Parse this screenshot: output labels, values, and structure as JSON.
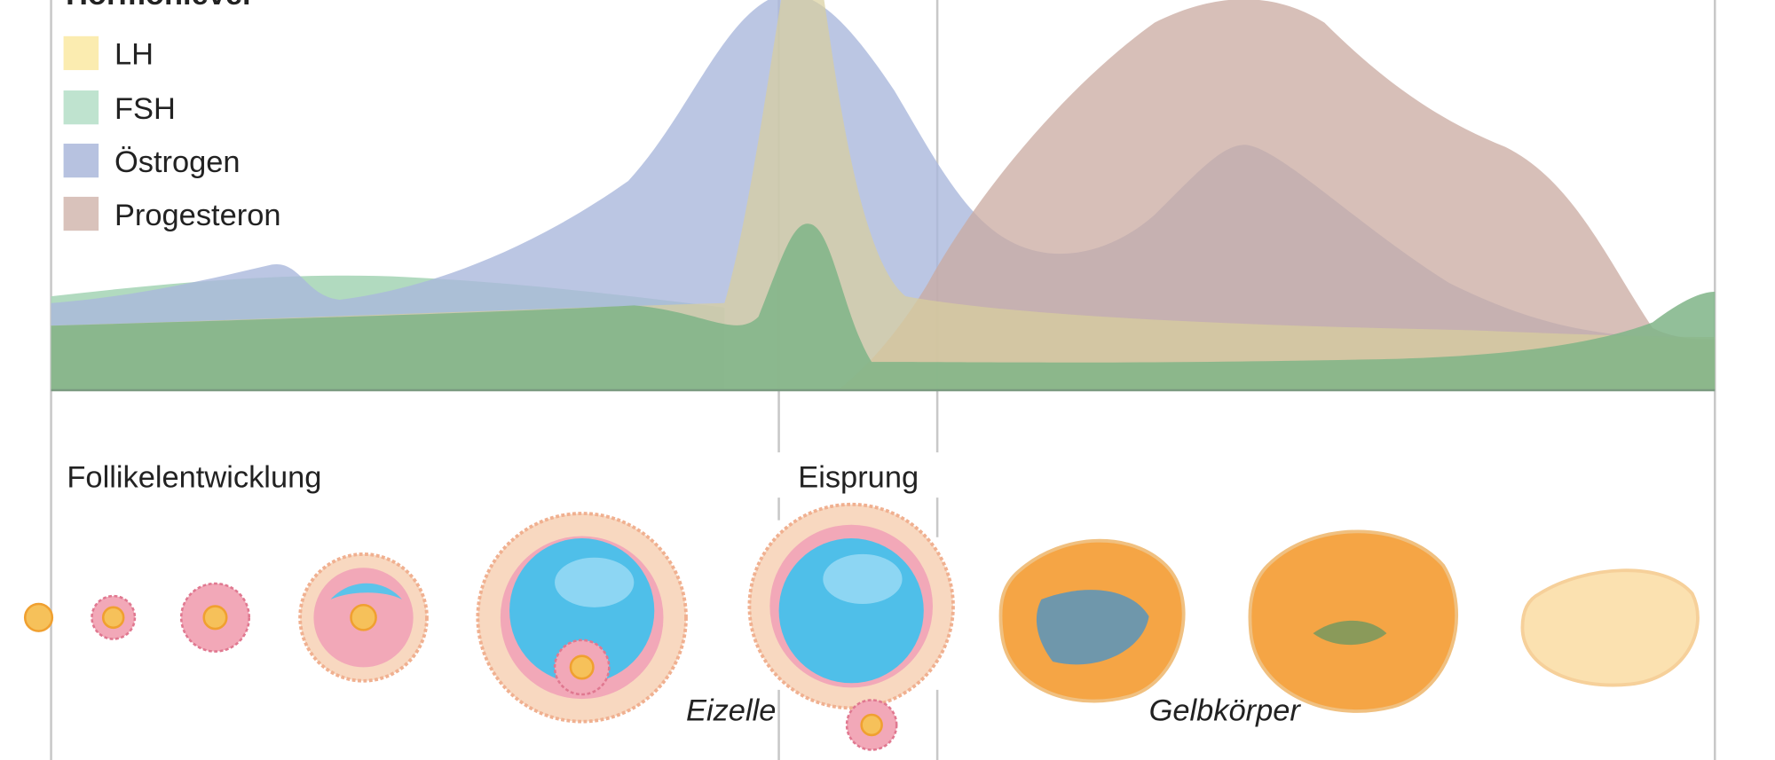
{
  "legend": {
    "title": "Hormonlevel",
    "items": [
      "LH",
      "FSH",
      "Östrogen",
      "Progesteron"
    ]
  },
  "labels": {
    "follicle": "Follikelentwicklung",
    "ovulation": "Eisprung",
    "egg": "Eizelle",
    "corpus_luteum": "Gelbkörper"
  }
}
